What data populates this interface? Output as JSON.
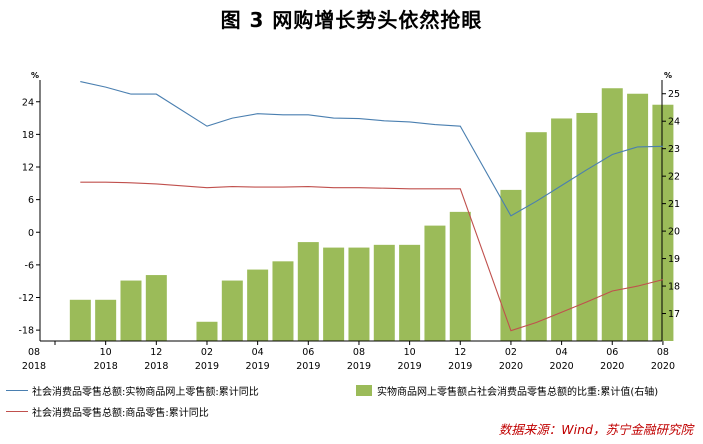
{
  "title": "图 3 网购增长势头依然抢眼",
  "source": "数据来源：Wind，苏宁金融研究院",
  "chart_data": {
    "type": "bar+line",
    "x_labels": [
      {
        "month": "08",
        "year": "2018"
      },
      {
        "month": "10",
        "year": "2018"
      },
      {
        "month": "12",
        "year": "2018"
      },
      {
        "month": "02",
        "year": "2019"
      },
      {
        "month": "04",
        "year": "2019"
      },
      {
        "month": "06",
        "year": "2019"
      },
      {
        "month": "08",
        "year": "2019"
      },
      {
        "month": "10",
        "year": "2019"
      },
      {
        "month": "12",
        "year": "2019"
      },
      {
        "month": "02",
        "year": "2020"
      },
      {
        "month": "04",
        "year": "2020"
      },
      {
        "month": "06",
        "year": "2020"
      },
      {
        "month": "08",
        "year": "2020"
      }
    ],
    "left_axis": {
      "unit": "%",
      "ticks": [
        -18,
        -12,
        -6,
        0,
        6,
        12,
        18,
        24
      ],
      "ylim": [
        -20,
        28
      ]
    },
    "right_axis": {
      "unit": "%",
      "ticks": [
        17,
        18,
        19,
        20,
        21,
        22,
        23,
        24,
        25
      ],
      "ylim": [
        16,
        25.5
      ]
    },
    "bars": {
      "name": "实物商品网上零售额占社会消费品零售总额的比重:累计值(右轴)",
      "color": "#9bbb59",
      "axis": "right",
      "points": [
        {
          "month_index": 1,
          "value": 17.5
        },
        {
          "month_index": 2,
          "value": 17.5
        },
        {
          "month_index": 3,
          "value": 18.2
        },
        {
          "month_index": 4,
          "value": 18.4
        },
        {
          "month_index": 6,
          "value": 16.7
        },
        {
          "month_index": 7,
          "value": 18.2
        },
        {
          "month_index": 8,
          "value": 18.6
        },
        {
          "month_index": 9,
          "value": 18.9
        },
        {
          "month_index": 10,
          "value": 19.6
        },
        {
          "month_index": 11,
          "value": 19.4
        },
        {
          "month_index": 12,
          "value": 19.4
        },
        {
          "month_index": 13,
          "value": 19.5
        },
        {
          "month_index": 14,
          "value": 19.5
        },
        {
          "month_index": 15,
          "value": 20.2
        },
        {
          "month_index": 16,
          "value": 20.7
        },
        {
          "month_index": 18,
          "value": 21.5
        },
        {
          "month_index": 19,
          "value": 23.6
        },
        {
          "month_index": 20,
          "value": 24.1
        },
        {
          "month_index": 21,
          "value": 24.3
        },
        {
          "month_index": 22,
          "value": 25.2
        },
        {
          "month_index": 23,
          "value": 25.0
        },
        {
          "month_index": 24,
          "value": 24.6
        }
      ]
    },
    "series": [
      {
        "name": "社会消费品零售总额:实物商品网上零售额:累计同比",
        "color": "#4a7fb0",
        "axis": "left",
        "points": [
          {
            "month_index": 1,
            "value": 27.7
          },
          {
            "month_index": 2,
            "value": 26.7
          },
          {
            "month_index": 3,
            "value": 25.4
          },
          {
            "month_index": 4,
            "value": 25.4
          },
          {
            "month_index": 6,
            "value": 19.5
          },
          {
            "month_index": 7,
            "value": 21.0
          },
          {
            "month_index": 8,
            "value": 21.8
          },
          {
            "month_index": 9,
            "value": 21.6
          },
          {
            "month_index": 10,
            "value": 21.6
          },
          {
            "month_index": 11,
            "value": 21.0
          },
          {
            "month_index": 12,
            "value": 20.9
          },
          {
            "month_index": 13,
            "value": 20.5
          },
          {
            "month_index": 14,
            "value": 20.3
          },
          {
            "month_index": 15,
            "value": 19.8
          },
          {
            "month_index": 16,
            "value": 19.5
          },
          {
            "month_index": 18,
            "value": 3.0
          },
          {
            "month_index": 19,
            "value": 5.7
          },
          {
            "month_index": 20,
            "value": 8.6
          },
          {
            "month_index": 21,
            "value": 11.5
          },
          {
            "month_index": 22,
            "value": 14.3
          },
          {
            "month_index": 23,
            "value": 15.7
          },
          {
            "month_index": 24,
            "value": 15.8
          }
        ]
      },
      {
        "name": "社会消费品零售总额:商品零售:累计同比",
        "color": "#c0504d",
        "axis": "left",
        "points": [
          {
            "month_index": 1,
            "value": 9.2
          },
          {
            "month_index": 2,
            "value": 9.2
          },
          {
            "month_index": 3,
            "value": 9.1
          },
          {
            "month_index": 4,
            "value": 8.9
          },
          {
            "month_index": 6,
            "value": 8.2
          },
          {
            "month_index": 7,
            "value": 8.4
          },
          {
            "month_index": 8,
            "value": 8.3
          },
          {
            "month_index": 9,
            "value": 8.3
          },
          {
            "month_index": 10,
            "value": 8.4
          },
          {
            "month_index": 11,
            "value": 8.2
          },
          {
            "month_index": 12,
            "value": 8.2
          },
          {
            "month_index": 13,
            "value": 8.1
          },
          {
            "month_index": 14,
            "value": 8.0
          },
          {
            "month_index": 15,
            "value": 8.0
          },
          {
            "month_index": 16,
            "value": 8.0
          },
          {
            "month_index": 18,
            "value": -18.1
          },
          {
            "month_index": 19,
            "value": -16.6
          },
          {
            "month_index": 20,
            "value": -14.7
          },
          {
            "month_index": 21,
            "value": -12.8
          },
          {
            "month_index": 22,
            "value": -10.8
          },
          {
            "month_index": 23,
            "value": -9.9
          },
          {
            "month_index": 24,
            "value": -8.7
          }
        ]
      }
    ],
    "grid": false,
    "legend_position": "bottom"
  }
}
